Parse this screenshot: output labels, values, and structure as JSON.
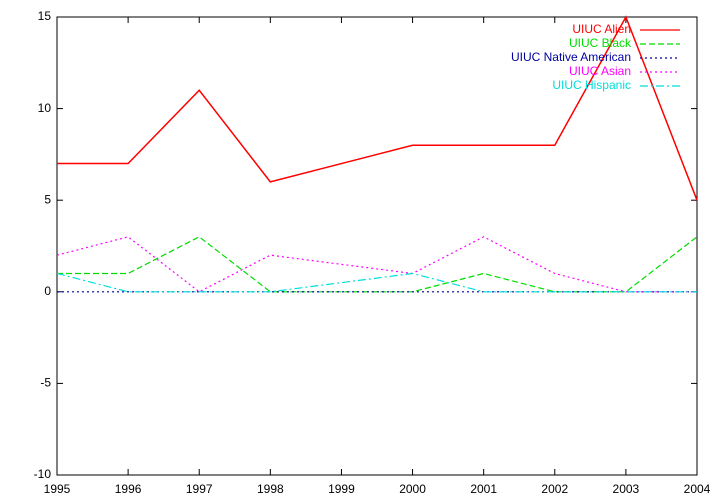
{
  "chart_data": {
    "type": "line",
    "x": [
      1995,
      1996,
      1997,
      1998,
      1999,
      2000,
      2001,
      2002,
      2003,
      2004
    ],
    "series": [
      {
        "name": "UIUC Alien",
        "color": "#ff0000",
        "dash": "solid",
        "values": [
          7,
          7,
          11,
          6,
          7,
          8,
          8,
          8,
          15,
          5
        ]
      },
      {
        "name": "UIUC Black",
        "color": "#00dd00",
        "dash": "dashed",
        "values": [
          1,
          1,
          3,
          0,
          0,
          0,
          1,
          0,
          0,
          3
        ]
      },
      {
        "name": "UIUC Native American",
        "color": "#0000a0",
        "dash": "dotted",
        "values": [
          0,
          0,
          0,
          0,
          0,
          0,
          0,
          0,
          0,
          0
        ]
      },
      {
        "name": "UIUC Asian",
        "color": "#ff00ff",
        "dash": "dotted",
        "values": [
          2,
          3,
          0,
          2,
          1.5,
          1,
          3,
          1,
          0,
          0
        ]
      },
      {
        "name": "UIUC Hispanic",
        "color": "#00dddd",
        "dash": "dashdot",
        "values": [
          1,
          0,
          0,
          0,
          0.5,
          1,
          0,
          0,
          0,
          0
        ]
      }
    ],
    "xlim": [
      1995,
      2004
    ],
    "xticks": [
      1995,
      1996,
      1997,
      1998,
      1999,
      2000,
      2001,
      2002,
      2003,
      2004
    ],
    "ylim": [
      -10,
      15
    ],
    "yticks": [
      -10,
      -5,
      0,
      5,
      10,
      15
    ],
    "grid": false,
    "legend": "top-right"
  }
}
